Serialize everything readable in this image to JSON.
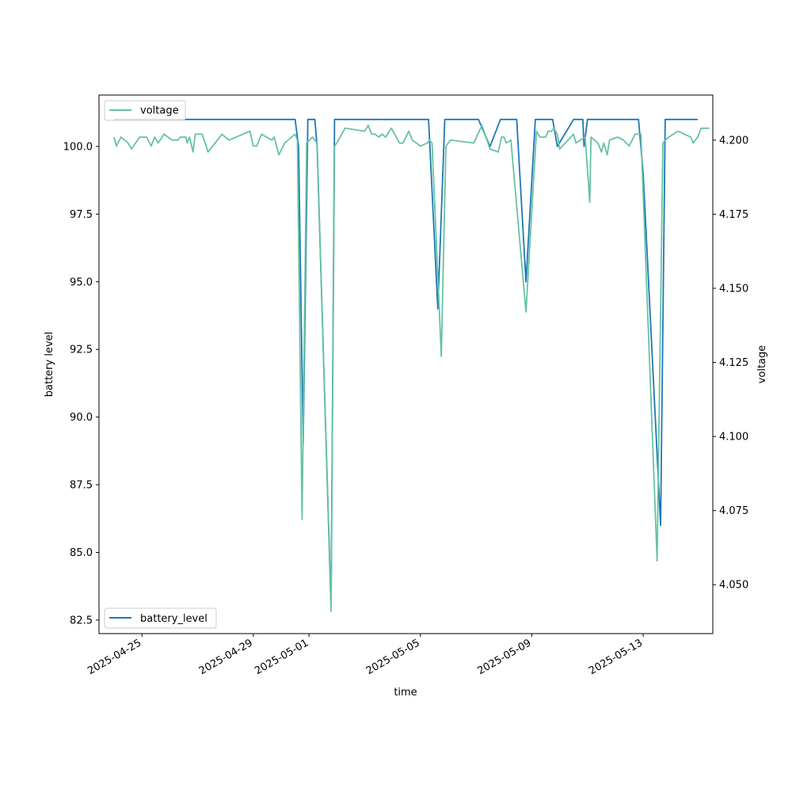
{
  "chart_data": {
    "type": "line",
    "xlabel": "time",
    "ylabel_left": "battery level",
    "ylabel_right": "voltage",
    "xlim": [
      "2025-04-23T11:00",
      "2025-05-15T12:00"
    ],
    "ylim_left": [
      82.0,
      101.9
    ],
    "ylim_right": [
      4.0335,
      4.2152
    ],
    "x_ticks": [
      "2025-04-25",
      "2025-04-29",
      "2025-05-01",
      "2025-05-05",
      "2025-05-09",
      "2025-05-13"
    ],
    "y_ticks_left": [
      "82.5",
      "85.0",
      "87.5",
      "90.0",
      "92.5",
      "95.0",
      "97.5",
      "100.0"
    ],
    "y_ticks_right": [
      "4.050",
      "4.075",
      "4.100",
      "4.125",
      "4.150",
      "4.175",
      "4.200"
    ],
    "legend_left": {
      "label": "battery_level",
      "placement": "lower-left"
    },
    "legend_right": {
      "label": "voltage",
      "placement": "upper-left"
    },
    "colors": {
      "battery_level": "#1f77b4",
      "voltage": "#66c2a5"
    },
    "series": [
      {
        "name": "battery_level",
        "axis": "left",
        "points": [
          [
            "2025-04-24T00:00",
            101
          ],
          [
            "2025-04-30T12:00",
            101
          ],
          [
            "2025-04-30T15:00",
            100
          ],
          [
            "2025-04-30T19:00",
            89
          ],
          [
            "2025-04-30T23:00",
            101
          ],
          [
            "2025-05-01T05:00",
            101
          ],
          [
            "2025-05-01T07:00",
            100
          ],
          [
            "2025-05-01T19:00",
            83
          ],
          [
            "2025-05-01T22:00",
            101
          ],
          [
            "2025-05-05T07:00",
            101
          ],
          [
            "2025-05-05T15:00",
            94
          ],
          [
            "2025-05-05T21:00",
            101
          ],
          [
            "2025-05-07T02:00",
            101
          ],
          [
            "2025-05-07T12:00",
            100
          ],
          [
            "2025-05-07T21:00",
            101
          ],
          [
            "2025-05-08T11:00",
            101
          ],
          [
            "2025-05-08T19:00",
            95
          ],
          [
            "2025-05-09T03:00",
            101
          ],
          [
            "2025-05-09T18:00",
            101
          ],
          [
            "2025-05-09T22:00",
            100
          ],
          [
            "2025-05-10T12:00",
            101
          ],
          [
            "2025-05-10T20:00",
            101
          ],
          [
            "2025-05-10T21:00",
            100
          ],
          [
            "2025-05-11T00:00",
            101
          ],
          [
            "2025-05-12T20:00",
            101
          ],
          [
            "2025-05-13T00:00",
            99
          ],
          [
            "2025-05-13T15:00",
            86
          ],
          [
            "2025-05-13T19:00",
            101
          ],
          [
            "2025-05-14T23:00",
            101
          ]
        ]
      },
      {
        "name": "voltage",
        "axis": "right",
        "points": [
          [
            "2025-04-24T00:00",
            4.201
          ],
          [
            "2025-04-24T02:00",
            4.198
          ],
          [
            "2025-04-24T06:00",
            4.201
          ],
          [
            "2025-04-24T12:00",
            4.199
          ],
          [
            "2025-04-24T15:00",
            4.197
          ],
          [
            "2025-04-24T22:00",
            4.201
          ],
          [
            "2025-04-25T04:00",
            4.201
          ],
          [
            "2025-04-25T08:00",
            4.198
          ],
          [
            "2025-04-25T11:00",
            4.201
          ],
          [
            "2025-04-25T14:00",
            4.199
          ],
          [
            "2025-04-25T19:00",
            4.202
          ],
          [
            "2025-04-26T02:00",
            4.2
          ],
          [
            "2025-04-26T07:00",
            4.2
          ],
          [
            "2025-04-26T09:00",
            4.201
          ],
          [
            "2025-04-26T14:00",
            4.201
          ],
          [
            "2025-04-26T15:00",
            4.199
          ],
          [
            "2025-04-26T17:00",
            4.201
          ],
          [
            "2025-04-26T20:00",
            4.196
          ],
          [
            "2025-04-26T22:00",
            4.202
          ],
          [
            "2025-04-27T04:00",
            4.202
          ],
          [
            "2025-04-27T09:00",
            4.196
          ],
          [
            "2025-04-27T21:00",
            4.202
          ],
          [
            "2025-04-28T03:00",
            4.2
          ],
          [
            "2025-04-28T21:00",
            4.203
          ],
          [
            "2025-04-29T00:00",
            4.198
          ],
          [
            "2025-04-29T03:00",
            4.198
          ],
          [
            "2025-04-29T07:00",
            4.202
          ],
          [
            "2025-04-29T16:00",
            4.2
          ],
          [
            "2025-04-29T18:00",
            4.201
          ],
          [
            "2025-04-29T22:00",
            4.195
          ],
          [
            "2025-04-30T03:00",
            4.199
          ],
          [
            "2025-04-30T12:00",
            4.202
          ],
          [
            "2025-04-30T14:00",
            4.2
          ],
          [
            "2025-04-30T18:00",
            4.072
          ],
          [
            "2025-04-30T22:00",
            4.199
          ],
          [
            "2025-05-01T03:00",
            4.201
          ],
          [
            "2025-05-01T07:00",
            4.199
          ],
          [
            "2025-05-01T19:00",
            4.041
          ],
          [
            "2025-05-01T22:00",
            4.198
          ],
          [
            "2025-05-02T00:00",
            4.199
          ],
          [
            "2025-05-02T07:00",
            4.204
          ],
          [
            "2025-05-03T00:00",
            4.203
          ],
          [
            "2025-05-03T03:00",
            4.205
          ],
          [
            "2025-05-03T06:00",
            4.202
          ],
          [
            "2025-05-03T09:00",
            4.202
          ],
          [
            "2025-05-03T12:00",
            4.201
          ],
          [
            "2025-05-03T15:00",
            4.202
          ],
          [
            "2025-05-03T18:00",
            4.201
          ],
          [
            "2025-05-03T23:00",
            4.204
          ],
          [
            "2025-05-04T06:00",
            4.199
          ],
          [
            "2025-05-04T09:00",
            4.199
          ],
          [
            "2025-05-04T14:00",
            4.203
          ],
          [
            "2025-05-04T17:00",
            4.2
          ],
          [
            "2025-05-05T00:00",
            4.198
          ],
          [
            "2025-05-05T06:00",
            4.199
          ],
          [
            "2025-05-05T08:00",
            4.2
          ],
          [
            "2025-05-05T10:00",
            4.199
          ],
          [
            "2025-05-05T18:00",
            4.127
          ],
          [
            "2025-05-05T22:00",
            4.198
          ],
          [
            "2025-05-06T02:00",
            4.2
          ],
          [
            "2025-05-06T22:00",
            4.199
          ],
          [
            "2025-05-07T05:00",
            4.205
          ],
          [
            "2025-05-07T12:00",
            4.197
          ],
          [
            "2025-05-07T19:00",
            4.196
          ],
          [
            "2025-05-07T22:00",
            4.201
          ],
          [
            "2025-05-08T00:00",
            4.201
          ],
          [
            "2025-05-08T02:00",
            4.199
          ],
          [
            "2025-05-08T06:00",
            4.2
          ],
          [
            "2025-05-08T19:00",
            4.142
          ],
          [
            "2025-05-09T04:00",
            4.203
          ],
          [
            "2025-05-09T07:00",
            4.201
          ],
          [
            "2025-05-09T12:00",
            4.201
          ],
          [
            "2025-05-09T14:00",
            4.203
          ],
          [
            "2025-05-09T17:00",
            4.203
          ],
          [
            "2025-05-09T19:00",
            4.204
          ],
          [
            "2025-05-09T22:00",
            4.202
          ],
          [
            "2025-05-10T00:00",
            4.197
          ],
          [
            "2025-05-10T12:00",
            4.202
          ],
          [
            "2025-05-10T14:00",
            4.199
          ],
          [
            "2025-05-10T22:00",
            4.201
          ],
          [
            "2025-05-11T02:00",
            4.179
          ],
          [
            "2025-05-11T03:00",
            4.201
          ],
          [
            "2025-05-11T06:00",
            4.2
          ],
          [
            "2025-05-11T09:00",
            4.199
          ],
          [
            "2025-05-11T12:00",
            4.196
          ],
          [
            "2025-05-11T14:00",
            4.199
          ],
          [
            "2025-05-11T17:00",
            4.195
          ],
          [
            "2025-05-11T19:00",
            4.2
          ],
          [
            "2025-05-12T02:00",
            4.201
          ],
          [
            "2025-05-12T07:00",
            4.2
          ],
          [
            "2025-05-12T12:00",
            4.198
          ],
          [
            "2025-05-12T17:00",
            4.202
          ],
          [
            "2025-05-12T22:00",
            4.202
          ],
          [
            "2025-05-13T12:00",
            4.058
          ],
          [
            "2025-05-13T17:00",
            4.199
          ],
          [
            "2025-05-13T19:00",
            4.2
          ],
          [
            "2025-05-13T22:00",
            4.201
          ],
          [
            "2025-05-14T02:00",
            4.202
          ],
          [
            "2025-05-14T06:00",
            4.203
          ],
          [
            "2025-05-14T17:00",
            4.201
          ],
          [
            "2025-05-14T19:00",
            4.199
          ],
          [
            "2025-05-14T23:00",
            4.201
          ],
          [
            "2025-05-15T02:00",
            4.204
          ],
          [
            "2025-05-15T09:00",
            4.204
          ]
        ]
      }
    ]
  }
}
